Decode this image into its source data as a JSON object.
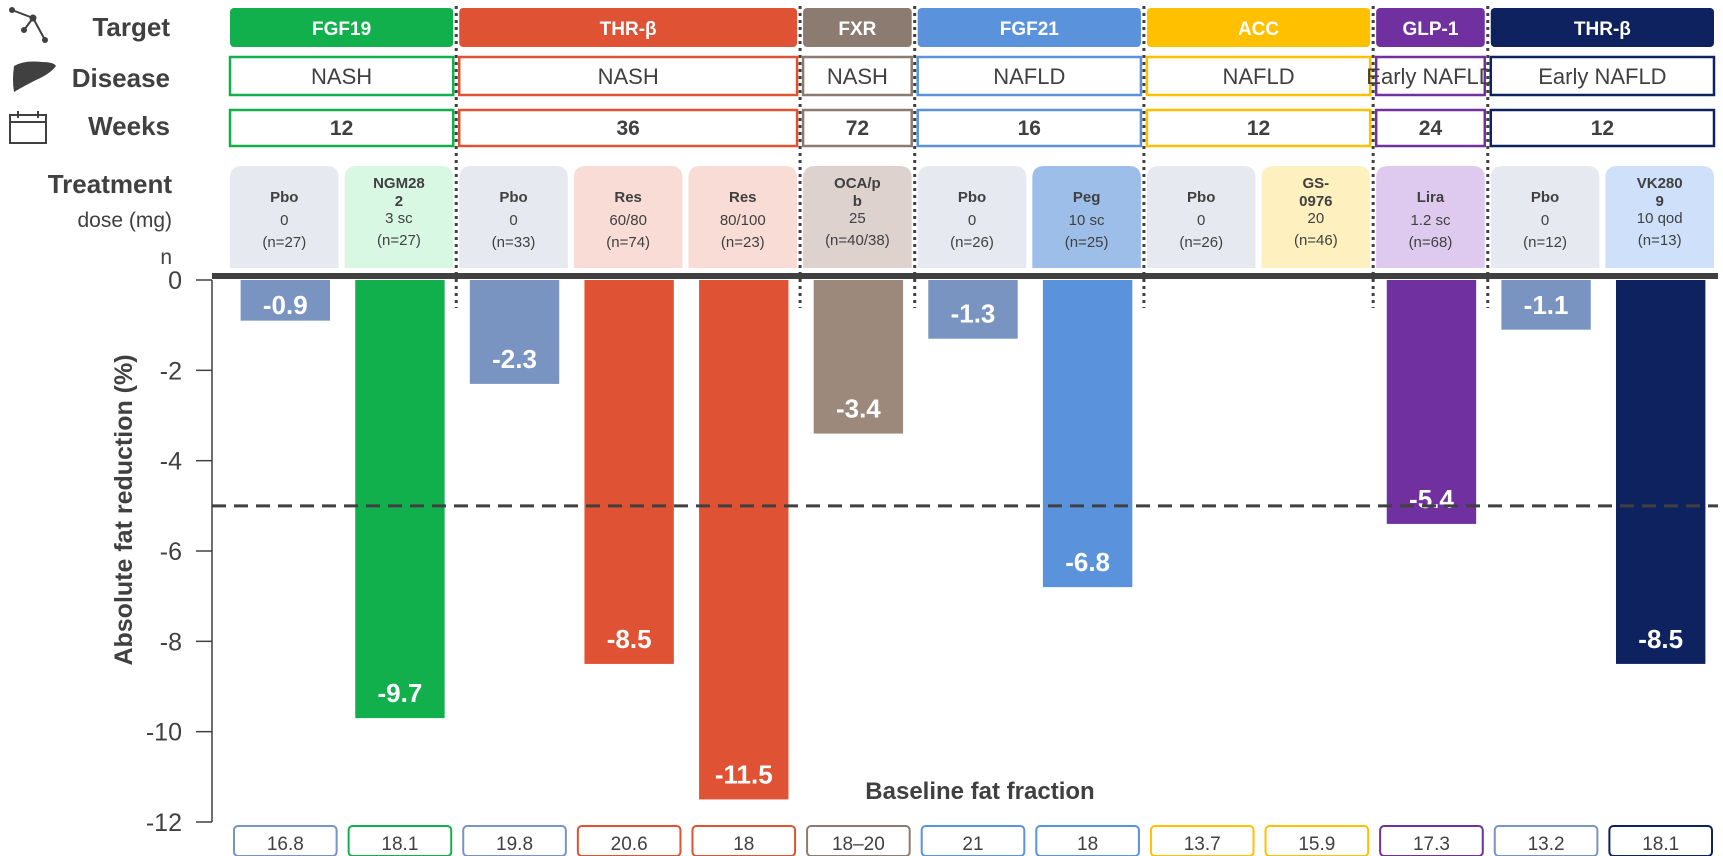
{
  "row_labels": {
    "target": "Target",
    "disease": "Disease",
    "weeks": "Weeks",
    "treatment": "Treatment",
    "dose": "dose (mg)",
    "n": "n"
  },
  "groups": [
    {
      "target": "FGF19",
      "disease": "NASH",
      "weeks": "12",
      "color": "#12b04c",
      "span": [
        0,
        1
      ]
    },
    {
      "target": "THR-β",
      "disease": "NASH",
      "weeks": "36",
      "color": "#df5233",
      "span": [
        2,
        4
      ]
    },
    {
      "target": "FXR",
      "disease": "NASH",
      "weeks": "72",
      "color": "#8c7b70",
      "span": [
        5,
        5
      ]
    },
    {
      "target": "FGF21",
      "disease": "NAFLD",
      "weeks": "16",
      "color": "#5a93dc",
      "span": [
        6,
        7
      ]
    },
    {
      "target": "ACC",
      "disease": "NAFLD",
      "weeks": "12",
      "color": "#ffc000",
      "span": [
        8,
        9
      ]
    },
    {
      "target": "GLP-1",
      "disease": "Early NAFLD",
      "weeks": "24",
      "color": "#7030a0",
      "span": [
        10,
        10
      ]
    },
    {
      "target": "THR-β",
      "disease": "Early NAFLD",
      "weeks": "12",
      "color": "#0e2260",
      "span": [
        11,
        12
      ]
    }
  ],
  "treatments": [
    {
      "name": "Pbo",
      "dose": "0",
      "n": "(n=27)",
      "bg": "#e6e9f0"
    },
    {
      "name": "NGM282",
      "dose": "3 sc",
      "n": "(n=27)",
      "bg": "#d9f8e4"
    },
    {
      "name": "Pbo",
      "dose": "0",
      "n": "(n=33)",
      "bg": "#e6e9f0"
    },
    {
      "name": "Res",
      "dose": "60/80",
      "n": "(n=74)",
      "bg": "#f8dcd5"
    },
    {
      "name": "Res",
      "dose": "80/100",
      "n": "(n=23)",
      "bg": "#f8dcd5"
    },
    {
      "name": "OCA/pb",
      "dose": "25",
      "n": "(n=40/38)",
      "bg": "#ddd2cd"
    },
    {
      "name": "Pbo",
      "dose": "0",
      "n": "(n=26)",
      "bg": "#e6e9f0"
    },
    {
      "name": "Peg",
      "dose": "10 sc",
      "n": "(n=25)",
      "bg": "#9dbee9"
    },
    {
      "name": "Pbo",
      "dose": "0",
      "n": "(n=26)",
      "bg": "#e6e9f0"
    },
    {
      "name": "GS-0976",
      "dose": "20",
      "n": "(n=46)",
      "bg": "#fff0bf"
    },
    {
      "name": "Lira",
      "dose": "1.2 sc",
      "n": "(n=68)",
      "bg": "#dfcaef"
    },
    {
      "name": "Pbo",
      "dose": "0",
      "n": "(n=12)",
      "bg": "#e6e9f0"
    },
    {
      "name": "VK2809",
      "dose": "10 qod",
      "n": "(n=13)",
      "bg": "#cfe0fb"
    }
  ],
  "chart_data": {
    "type": "bar",
    "ylabel": "Absolute  fat reduction (%)",
    "ylim": [
      -12,
      0
    ],
    "yticks": [
      "0",
      "-2",
      "-4",
      "-6",
      "-8",
      "-10",
      "-12"
    ],
    "reference_line": -5,
    "categories": [
      "Pbo",
      "NGM282",
      "Pbo",
      "Res",
      "Res",
      "OCA/pb",
      "Pbo",
      "Peg",
      "Pbo",
      "GS-0976",
      "Lira",
      "Pbo",
      "VK2809"
    ],
    "values": [
      -0.9,
      -9.7,
      -2.3,
      -8.5,
      -11.5,
      -3.4,
      -1.3,
      -6.8,
      null,
      null,
      -5.4,
      -1.1,
      -8.5
    ],
    "value_labels": [
      "-0.9",
      "-9.7",
      "-2.3",
      "-8.5",
      "-11.5",
      "-3.4",
      "-1.3",
      "-6.8",
      "",
      "",
      "-5.4",
      "-1.1",
      "-8.5"
    ],
    "bar_colors": [
      "#7994c0",
      "#12b04c",
      "#7994c0",
      "#df5233",
      "#df5233",
      "#9d887c",
      "#7994c0",
      "#5a93dc",
      "",
      "",
      "#7030a0",
      "#7994c0",
      "#0e2260"
    ],
    "baseline_title": "Baseline fat fraction",
    "baseline_values": [
      "16.8",
      "18.1",
      "19.8",
      "20.6",
      "18",
      "18–20",
      "21",
      "18",
      "13.7",
      "15.9",
      "17.3",
      "13.2",
      "18.1"
    ],
    "baseline_border": [
      "#7994c0",
      "#12b04c",
      "#7994c0",
      "#df5233",
      "#df5233",
      "#8c7b70",
      "#5a93dc",
      "#5a93dc",
      "#ffc000",
      "#ffc000",
      "#7030a0",
      "#7994c0",
      "#0e2260"
    ]
  }
}
